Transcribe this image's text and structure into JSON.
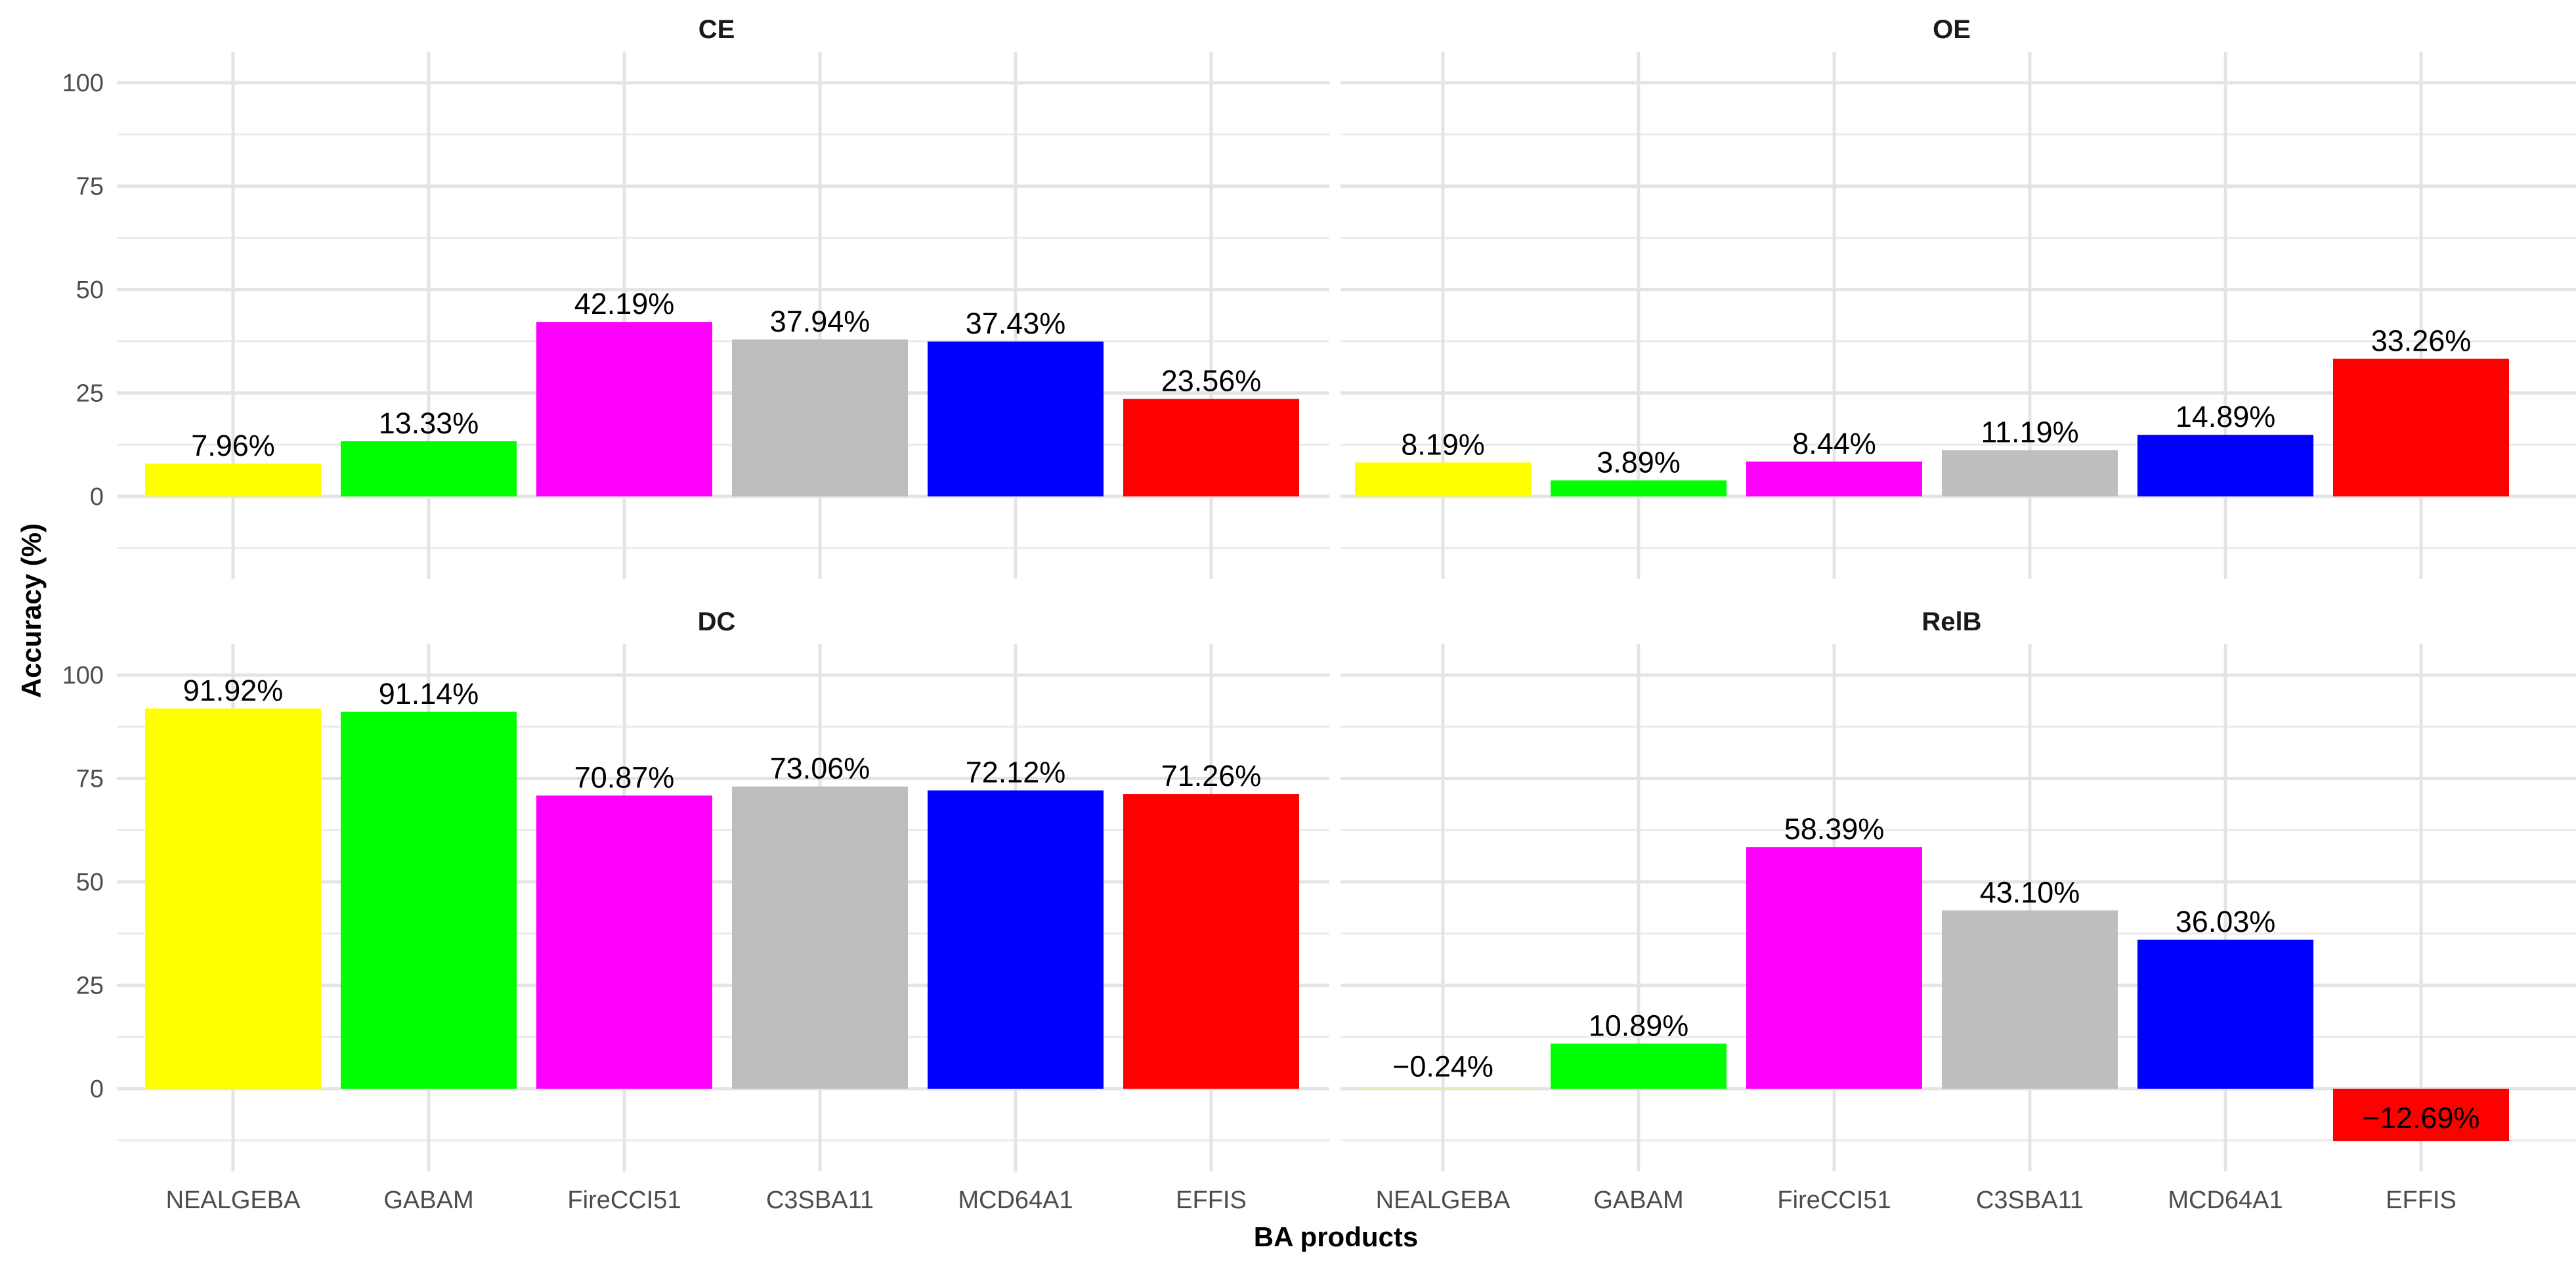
{
  "chart_data": {
    "type": "bar",
    "xlabel": "BA products",
    "ylabel": "Accuracy (%)",
    "ylim": [
      -12.69,
      100
    ],
    "yticks": [
      0,
      25,
      50,
      75,
      100
    ],
    "categories": [
      "NEALGEBA",
      "GABAM",
      "FireCCI51",
      "C3SBA11",
      "MCD64A1",
      "EFFIS"
    ],
    "colors": [
      "#ffff00",
      "#00ff00",
      "#ff00ff",
      "#bebebe",
      "#0000ff",
      "#ff0000"
    ],
    "grid": true,
    "panels": [
      {
        "title": "CE",
        "values": [
          7.96,
          13.33,
          42.19,
          37.94,
          37.43,
          23.56
        ],
        "labels": [
          "7.96%",
          "13.33%",
          "42.19%",
          "37.94%",
          "37.43%",
          "23.56%"
        ]
      },
      {
        "title": "OE",
        "values": [
          8.19,
          3.89,
          8.44,
          11.19,
          14.89,
          33.26
        ],
        "labels": [
          "8.19%",
          "3.89%",
          "8.44%",
          "11.19%",
          "14.89%",
          "33.26%"
        ]
      },
      {
        "title": "DC",
        "values": [
          91.92,
          91.14,
          70.87,
          73.06,
          72.12,
          71.26
        ],
        "labels": [
          "91.92%",
          "91.14%",
          "70.87%",
          "73.06%",
          "72.12%",
          "71.26%"
        ]
      },
      {
        "title": "RelB",
        "values": [
          -0.24,
          10.89,
          58.39,
          43.1,
          36.03,
          -12.69
        ],
        "labels": [
          "−0.24%",
          "10.89%",
          "58.39%",
          "43.10%",
          "36.03%",
          "−12.69%"
        ]
      }
    ]
  }
}
